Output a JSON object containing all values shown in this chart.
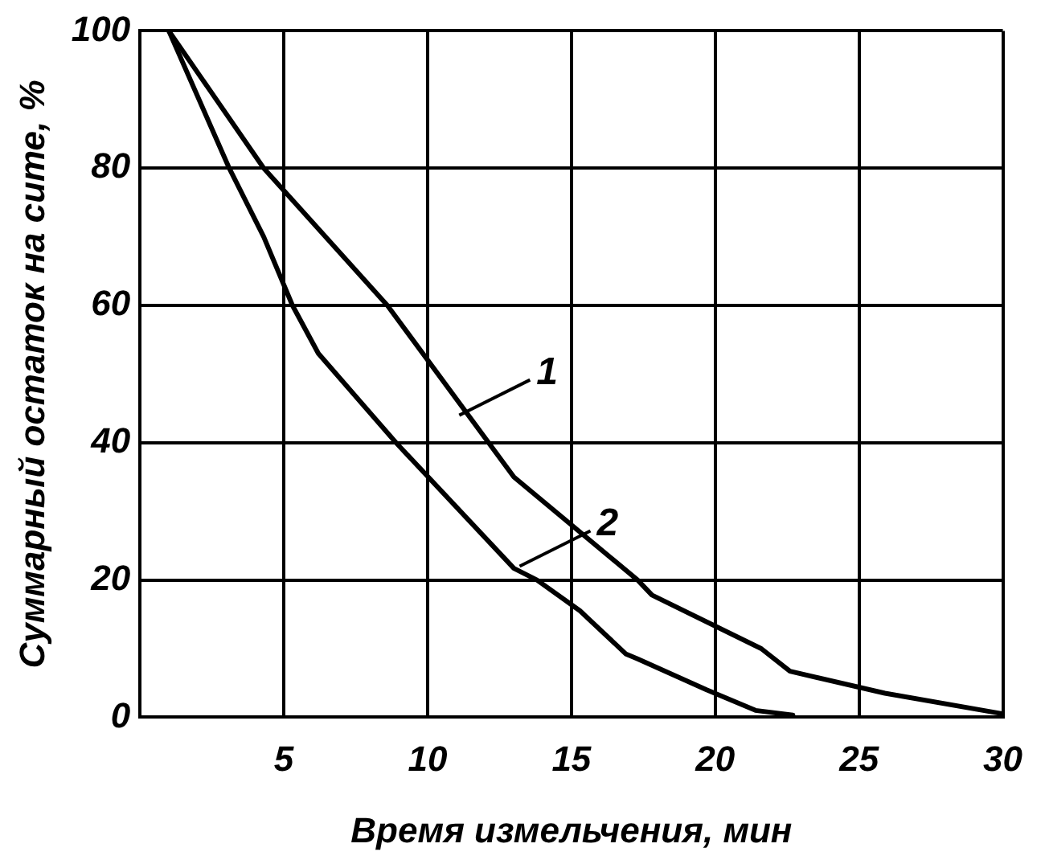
{
  "chart_data": {
    "type": "line",
    "xlabel": "Время измельчения, мин",
    "ylabel": "Суммарный остаток на сите, %",
    "xlim": [
      0,
      30
    ],
    "xticks": [
      5,
      10,
      15,
      20,
      25,
      30
    ],
    "ylim": [
      0,
      100
    ],
    "yticks": [
      0,
      20,
      40,
      60,
      80,
      100
    ],
    "grid": true,
    "marker": "none",
    "line_style": "solid",
    "series": [
      {
        "color": "#000000",
        "x": [
          1,
          4.3,
          8.6,
          13,
          17.3,
          17.8,
          21.6,
          22.6,
          25.9,
          30
        ],
        "values": [
          100,
          80,
          60,
          35,
          20,
          17.8,
          10,
          6.7,
          3.5,
          0.5
        ]
      },
      {
        "color": "#000000",
        "x": [
          1,
          3.1,
          4.3,
          5.3,
          6.2,
          8.9,
          13,
          13.8,
          15.3,
          16.9,
          17.3,
          19.7,
          21.4,
          22.7
        ],
        "values": [
          100,
          80,
          70,
          60,
          53,
          40,
          21.7,
          20,
          15.5,
          9.2,
          8.5,
          4,
          1,
          0.3
        ]
      }
    ],
    "annotations": [
      {
        "text": "1",
        "x": 11.1,
        "y": 44
      },
      {
        "text": "2",
        "x": 13.2,
        "y": 22
      }
    ]
  }
}
